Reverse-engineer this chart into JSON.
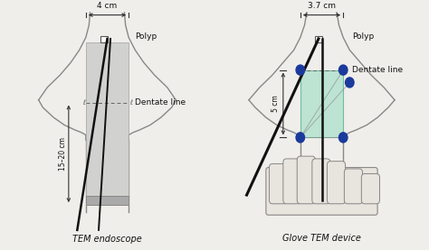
{
  "bg_color": "#f0eeea",
  "left_title": "TEM endoscope",
  "right_title": "Glove TEM device",
  "left_dim_width": "4 cm",
  "left_dim_height": "15–20 cm",
  "right_dim_width": "3.7 cm",
  "right_dim_height": "5 cm",
  "polyp_label": "Polyp",
  "dentate_label": "Dentate line",
  "rect_color_left": "#cccccc",
  "rect_color_right": "#a8dfc8",
  "blue_dot_color": "#1a3a9c",
  "line_color": "#111111",
  "text_color": "#111111",
  "wall_color": "#888888",
  "dim_color": "#333333"
}
